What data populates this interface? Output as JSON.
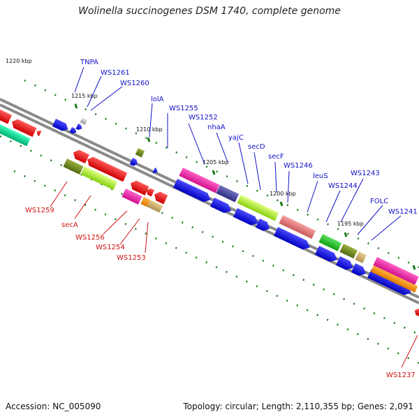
{
  "title": "Wolinella succinogenes DSM 1740, complete genome",
  "footer": {
    "accession": "Accession: NC_005090",
    "topology": "Topology: circular; Length: 2,110,355 bp; Genes: 2,091"
  },
  "scale_labels": [
    "1220 kbp",
    "1215 kbp",
    "1210 kbp",
    "1205 kbp",
    "1200 kbp",
    "1195 kbp"
  ],
  "forward_gene_labels": [
    "TNPA",
    "WS1261",
    "WS1260",
    "lolA",
    "WS1255",
    "WS1252",
    "nhaA",
    "yajC",
    "secD",
    "secF",
    "WS1246",
    "leuS",
    "WS1244",
    "WS1243",
    "FOLC",
    "WS1241"
  ],
  "reverse_gene_labels": [
    "WS1259",
    "secA",
    "WS1256",
    "WS1254",
    "WS1253",
    "WS1237"
  ],
  "colors": {
    "forward_label": "#1010c8",
    "reverse_label": "#d01010",
    "backbone": "#8a8a8a",
    "tick": "#1a7a1a",
    "cds_forward": "#0000ee",
    "cds_reverse": "#ee0000"
  }
}
